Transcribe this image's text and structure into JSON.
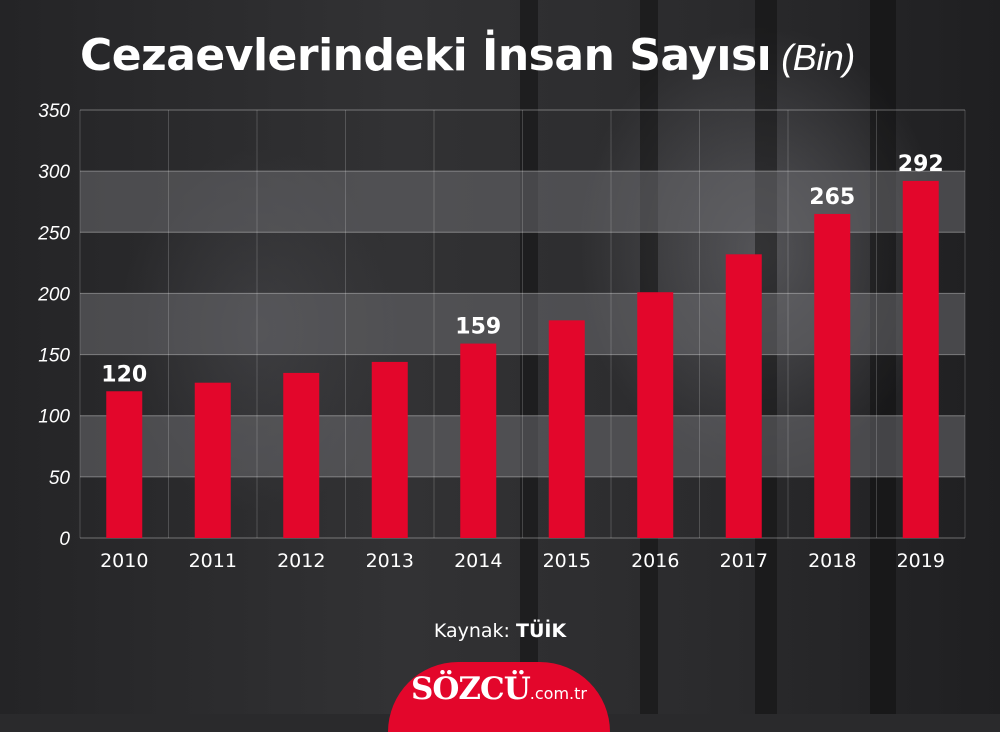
{
  "header": {
    "title": "Cezaevlerindeki İnsan Sayısı",
    "unit": "(Bin)"
  },
  "chart_data": {
    "type": "bar",
    "title": "Cezaevlerindeki İnsan Sayısı (Bin)",
    "xlabel": "",
    "ylabel": "",
    "categories": [
      "2010",
      "2011",
      "2012",
      "2013",
      "2014",
      "2015",
      "2016",
      "2017",
      "2018",
      "2019"
    ],
    "values": [
      120,
      127,
      135,
      144,
      159,
      178,
      201,
      232,
      265,
      292
    ],
    "data_labels": {
      "2010": "120",
      "2014": "159",
      "2018": "265",
      "2019": "292"
    },
    "ylim": [
      0,
      350
    ],
    "yticks": [
      0,
      50,
      100,
      150,
      200,
      250,
      300,
      350
    ],
    "bar_color": "#e3062b",
    "grid": true,
    "legend": "none"
  },
  "footer": {
    "source_label": "Kaynak:",
    "source_value": "TÜİK",
    "logo_brand": "SÖZCÜ",
    "logo_domain": ".com.tr"
  },
  "colors": {
    "accent": "#e3062b",
    "text": "#ffffff",
    "band": "#6a6a6e"
  }
}
